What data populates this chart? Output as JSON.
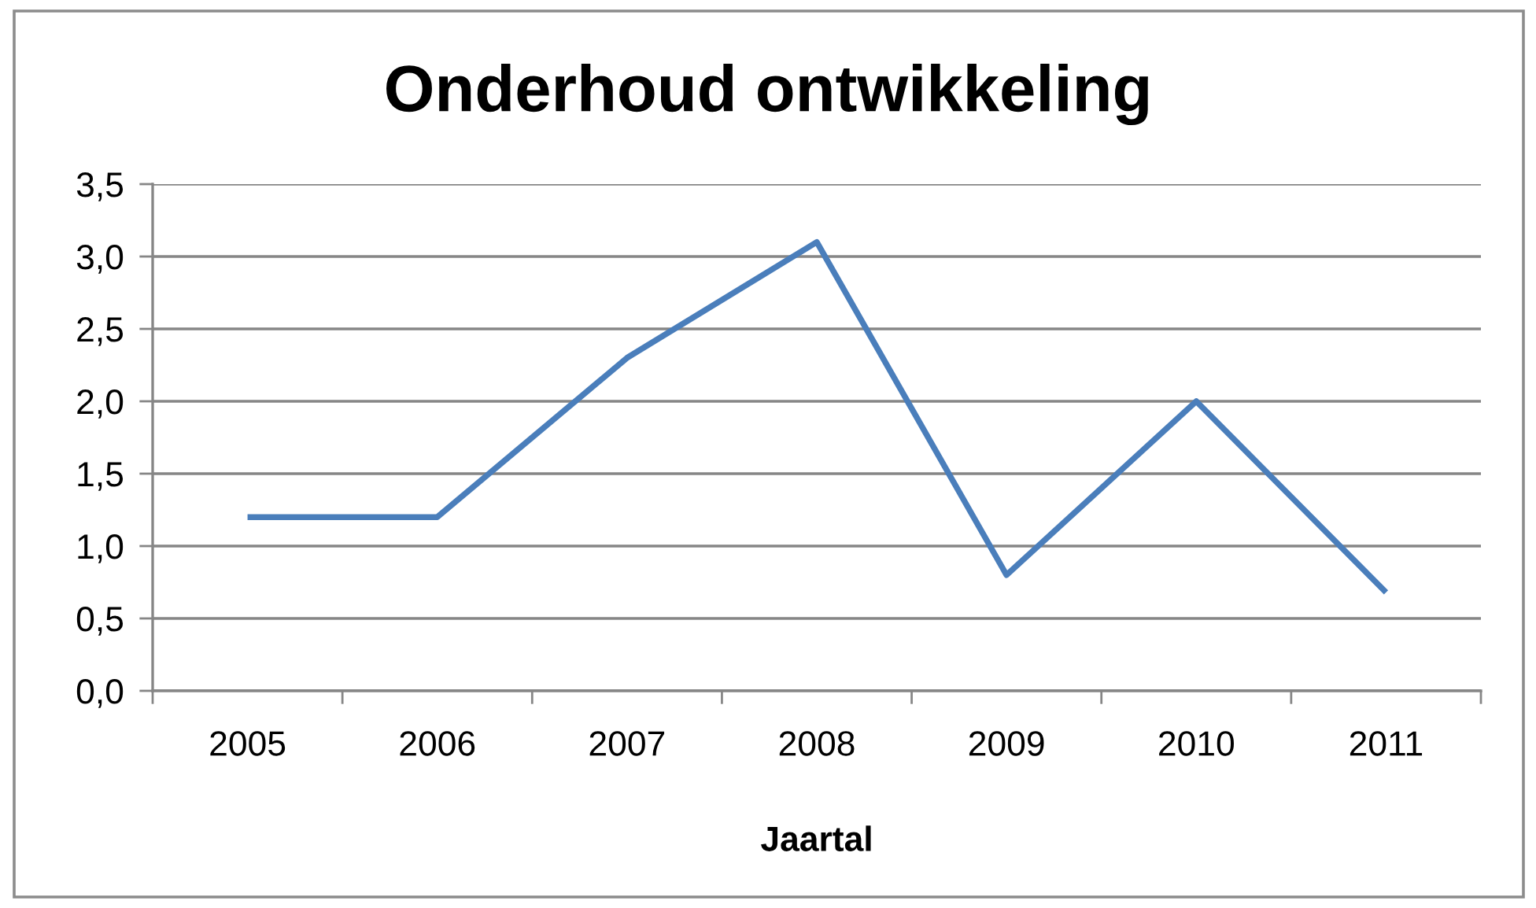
{
  "chart_data": {
    "type": "line",
    "title": "Onderhoud ontwikkeling",
    "xlabel": "Jaartal",
    "categories": [
      "2005",
      "2006",
      "2007",
      "2008",
      "2009",
      "2010",
      "2011"
    ],
    "series": [
      {
        "color": "#4a7ebb",
        "values": [
          1.2,
          1.2,
          2.3,
          3.1,
          0.8,
          2.0,
          0.68
        ]
      }
    ],
    "ylim": [
      0,
      3.5
    ],
    "yticks": [
      {
        "value": 0,
        "label": "0,0"
      },
      {
        "value": 0.5,
        "label": "0,5"
      },
      {
        "value": 1,
        "label": "1,0"
      },
      {
        "value": 1.5,
        "label": "1,5"
      },
      {
        "value": 2,
        "label": "2,0"
      },
      {
        "value": 2.5,
        "label": "2,5"
      },
      {
        "value": 3,
        "label": "3,0"
      },
      {
        "value": 3.5,
        "label": "3,5"
      }
    ],
    "grid": "y",
    "marker": "none",
    "line_style": "solid"
  }
}
